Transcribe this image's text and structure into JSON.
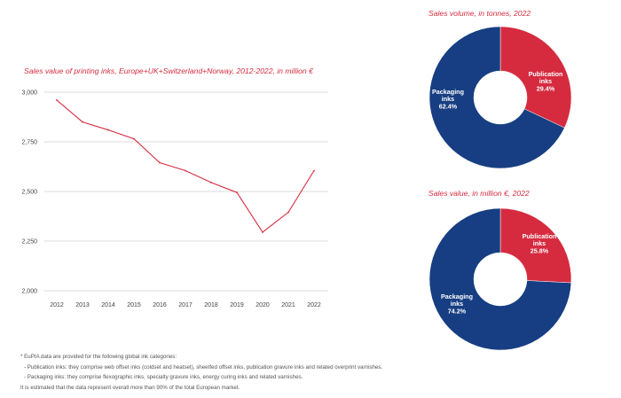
{
  "colors": {
    "accent": "#d62b3f",
    "navy": "#173e82",
    "grid": "#cfcfcf",
    "text": "#444444"
  },
  "chart_data": [
    {
      "type": "line",
      "title": "Sales value of printing inks, Europe+UK+Switzerland+Norway, 2012-2022, in million €",
      "x": [
        "2012",
        "2013",
        "2014",
        "2015",
        "2016",
        "2017",
        "2018",
        "2019",
        "2020",
        "2021",
        "2022"
      ],
      "series": [
        {
          "values": [
            2960,
            2850,
            2810,
            2765,
            2645,
            2605,
            2545,
            2495,
            2295,
            2395,
            2605
          ],
          "color": "#d62b3f"
        }
      ],
      "ylim": [
        2000,
        3000
      ],
      "yticks": [
        2000,
        2250,
        2500,
        2750,
        3000
      ],
      "ytick_labels": [
        "2,000",
        "2,250",
        "2,500",
        "2,750",
        "3,000"
      ],
      "grid": true
    },
    {
      "type": "pie",
      "title": "Sales volume, in tonnes, 2022",
      "slices": [
        {
          "label_line1": "Publication",
          "label_line2": "inks",
          "value": 29.4,
          "pct_label": "29.4%",
          "color": "#d62b3f"
        },
        {
          "label_line1": "Packaging",
          "label_line2": "inks",
          "value": 62.4,
          "pct_label": "62.4%",
          "color": "#173e82"
        }
      ]
    },
    {
      "type": "pie",
      "title": "Sales value, in million €, 2022",
      "slices": [
        {
          "label_line1": "Publication",
          "label_line2": "inks",
          "value": 25.8,
          "pct_label": "25.8%",
          "color": "#d62b3f"
        },
        {
          "label_line1": "Packaging",
          "label_line2": "inks",
          "value": 74.2,
          "pct_label": "74.2%",
          "color": "#173e82"
        }
      ]
    }
  ],
  "footnote": {
    "line1": "* EuPIA data are provided for the following global ink categories:",
    "line2": "- Publication inks: they comprise web offset inks (coldset and heatset), sheetfed offset inks, publication gravure inks and related overprint varnishes.",
    "line3": "- Packaging inks: they comprise flexographic inks, specialty gravure inks, energy curing inks and related varnishes.",
    "line4": "It is estimated that the data represent overall more than 90% of the total European market."
  }
}
